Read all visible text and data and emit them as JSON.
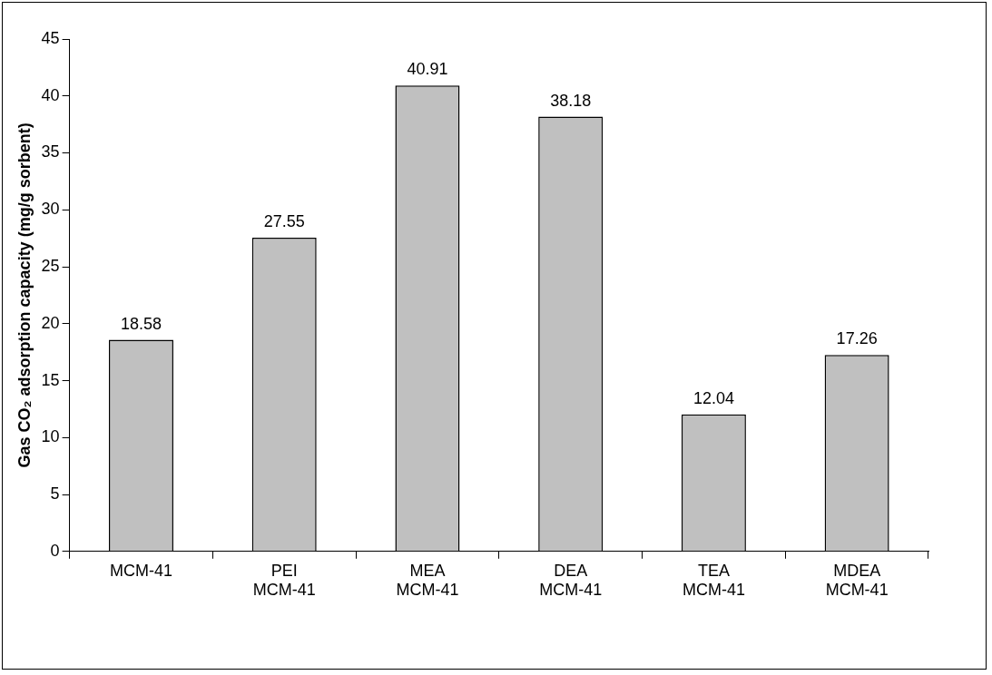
{
  "chart_data": {
    "type": "bar",
    "ylabel": "Gas CO₂ adsorption capacity (mg/g sorbent)",
    "categories": [
      "MCM-41",
      "PEI MCM-41",
      "MEA MCM-41",
      "DEA MCM-41",
      "TEA MCM-41",
      "MDEA MCM-41"
    ],
    "values": [
      18.58,
      27.55,
      40.91,
      38.18,
      12.04,
      17.26
    ],
    "color": "#c0c0c0",
    "ylim": [
      0,
      45
    ],
    "yticks": [
      0,
      5,
      10,
      15,
      20,
      25,
      30,
      35,
      40,
      45
    ],
    "grid": false,
    "legend": false,
    "data_labels": true
  }
}
